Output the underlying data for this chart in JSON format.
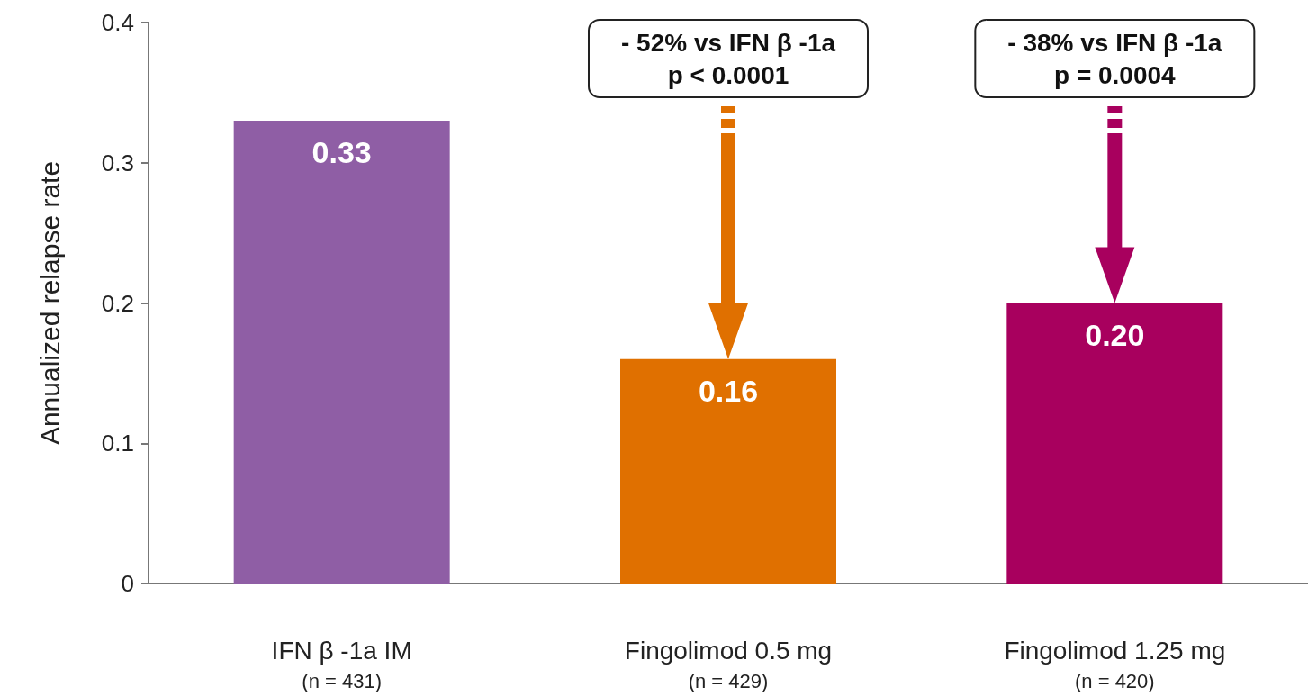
{
  "chart_data": {
    "type": "bar",
    "ylabel": "Annualized relapse rate",
    "categories": [
      "IFN β -1a IM\n(n = 431)",
      "Fingolimod 0.5 mg\n(n = 429)",
      "Fingolimod 1.25 mg\n(n = 420)"
    ],
    "values": [
      0.33,
      0.16,
      0.2
    ],
    "colors": [
      "#8f5ea5",
      "#e07000",
      "#a8005e"
    ],
    "ylim": [
      0,
      0.4
    ],
    "yticks": [
      0,
      0.1,
      0.2,
      0.3,
      0.4
    ],
    "value_labels": [
      "0.33",
      "0.16",
      "0.20"
    ],
    "grid": false,
    "annotations": [
      "- 52% vs IFN β -1a\np < 0.0001",
      "- 38% vs IFN β -1a\np = 0.0004"
    ]
  }
}
